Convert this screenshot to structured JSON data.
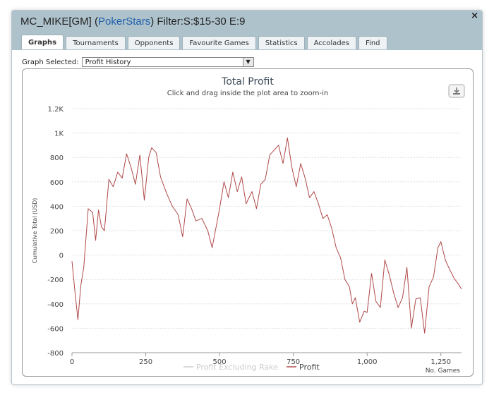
{
  "window": {
    "title_prefix": "MC_MIKE[GM] (",
    "site": "PokerStars",
    "title_suffix": ") Filter:S:$15-30 E:9",
    "close_glyph": "×"
  },
  "tabs": [
    "Graphs",
    "Tournaments",
    "Opponents",
    "Favourite Games",
    "Statistics",
    "Accolades",
    "Find"
  ],
  "active_tab": "Graphs",
  "graph_selector": {
    "label": "Graph Selected:",
    "value": "Profit History"
  },
  "colors": {
    "profit": "#b04848",
    "profit_ex_rake": "#cccccc",
    "titlebar": "#aec2cc",
    "site": "#1f5fa8"
  },
  "export_icon": "download-icon",
  "chart_data": {
    "type": "line",
    "title": "Total Profit",
    "subtitle": "Click and drag inside the plot area to zoom-in",
    "xlabel": "No. Games",
    "ylabel": "Cumulative Total (USD)",
    "xlim": [
      0,
      1320
    ],
    "ylim": [
      -800,
      1200
    ],
    "xticks": [
      0,
      250,
      500,
      750,
      1000,
      1250
    ],
    "xtick_labels": [
      "0",
      "250",
      "500",
      "750",
      "1,000",
      "1,250"
    ],
    "yticks": [
      -800,
      -600,
      -400,
      -200,
      0,
      200,
      400,
      600,
      800,
      1000,
      1200
    ],
    "ytick_labels": [
      "-800",
      "-600",
      "-400",
      "-200",
      "0",
      "200",
      "400",
      "600",
      "800",
      "1K",
      "1.2K"
    ],
    "grid": true,
    "legend_position": "bottom-center",
    "series": [
      {
        "name": "Profit Excluding Rake",
        "values": []
      },
      {
        "name": "Profit",
        "x": [
          0,
          10,
          20,
          30,
          40,
          55,
          70,
          80,
          90,
          100,
          110,
          125,
          140,
          155,
          170,
          185,
          200,
          215,
          230,
          245,
          260,
          270,
          285,
          300,
          320,
          340,
          360,
          375,
          390,
          405,
          420,
          440,
          460,
          475,
          490,
          500,
          515,
          530,
          545,
          560,
          575,
          590,
          610,
          625,
          640,
          655,
          670,
          685,
          700,
          715,
          730,
          745,
          760,
          775,
          790,
          805,
          820,
          835,
          850,
          865,
          880,
          895,
          910,
          925,
          940,
          950,
          960,
          975,
          990,
          1000,
          1015,
          1030,
          1045,
          1060,
          1075,
          1090,
          1105,
          1120,
          1135,
          1150,
          1165,
          1180,
          1195,
          1210,
          1225,
          1240,
          1250,
          1265,
          1280,
          1295,
          1310,
          1320
        ],
        "y": [
          -50,
          -300,
          -530,
          -250,
          -100,
          380,
          350,
          120,
          370,
          230,
          200,
          620,
          560,
          680,
          630,
          830,
          720,
          580,
          820,
          450,
          800,
          880,
          840,
          640,
          510,
          400,
          330,
          150,
          460,
          380,
          280,
          300,
          200,
          60,
          250,
          380,
          600,
          470,
          680,
          520,
          640,
          420,
          520,
          380,
          580,
          620,
          820,
          860,
          900,
          750,
          960,
          720,
          560,
          750,
          630,
          470,
          520,
          420,
          300,
          330,
          220,
          60,
          -20,
          -200,
          -260,
          -400,
          -350,
          -550,
          -460,
          -470,
          -150,
          -380,
          -430,
          -40,
          -160,
          -310,
          -430,
          -350,
          -100,
          -600,
          -360,
          -350,
          -640,
          -260,
          -180,
          60,
          110,
          -40,
          -120,
          -190,
          -240,
          -280
        ]
      }
    ]
  }
}
